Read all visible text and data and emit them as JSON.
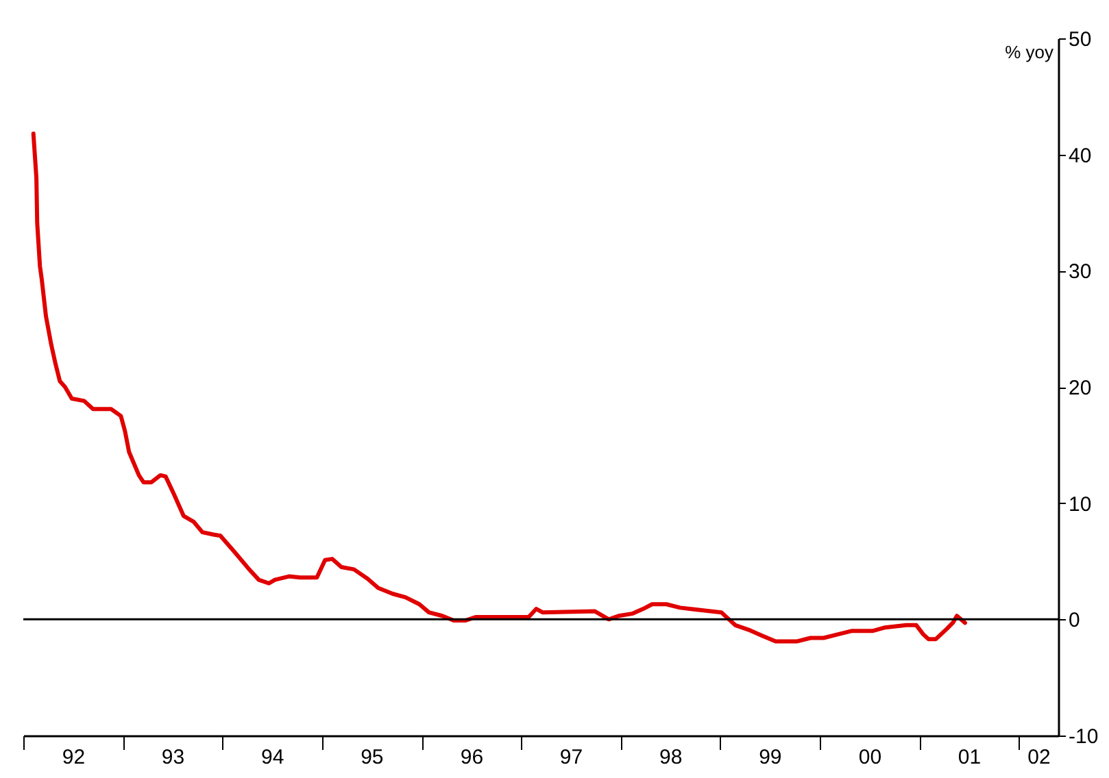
{
  "chart_data": {
    "type": "line",
    "ylabel": "% yoy",
    "x": [
      "1992-02-07",
      "1992-02-18",
      "1992-02-21",
      "1992-03-02",
      "1992-03-09",
      "1992-03-24",
      "1992-04-12",
      "1992-04-28",
      "1992-05-14",
      "1992-06-02",
      "1992-06-27",
      "1992-08-11",
      "1992-09-13",
      "1992-11-18",
      "1992-12-24",
      "1993-01-08",
      "1993-01-23",
      "1993-02-28",
      "1993-03-17",
      "1993-04-15",
      "1993-05-18",
      "1993-06-06",
      "1993-07-08",
      "1993-08-11",
      "1993-09-17",
      "1993-10-19",
      "1993-11-28",
      "1993-12-24",
      "1994-02-14",
      "1994-04-05",
      "1994-05-14",
      "1994-06-20",
      "1994-07-12",
      "1994-09-02",
      "1994-10-12",
      "1994-12-13",
      "1995-01-12",
      "1995-02-07",
      "1995-03-13",
      "1995-04-28",
      "1995-06-17",
      "1995-07-26",
      "1995-09-17",
      "1995-11-03",
      "1995-12-24",
      "1996-01-28",
      "1996-03-17",
      "1996-04-28",
      "1996-06-09",
      "1996-07-19",
      "1996-11-18",
      "1997-01-28",
      "1997-02-25",
      "1997-03-20",
      "1997-09-27",
      "1997-11-18",
      "1997-12-24",
      "1998-02-14",
      "1998-03-24",
      "1998-04-26",
      "1998-06-17",
      "1998-08-07",
      "1998-10-19",
      "1999-01-05",
      "1999-01-28",
      "1999-02-25",
      "1999-04-15",
      "1999-06-02",
      "1999-07-23",
      "1999-10-08",
      "1999-11-28",
      "2000-01-15",
      "2000-03-06",
      "2000-04-26",
      "2000-07-12",
      "2000-08-28",
      "2000-11-14",
      "2000-12-20",
      "2001-01-15",
      "2001-02-03",
      "2001-03-02",
      "2001-04-12",
      "2001-05-03",
      "2001-05-18",
      "2001-06-02",
      "2001-06-17"
    ],
    "series": [
      {
        "color": "#e00000",
        "values": [
          41.8,
          38,
          34.1,
          30.4,
          29.2,
          26.1,
          23.7,
          22,
          20.5,
          20,
          19,
          18.8,
          18.1,
          18.1,
          17.5,
          16.2,
          14.4,
          12.4,
          11.8,
          11.8,
          12.4,
          12.3,
          10.7,
          8.9,
          8.4,
          7.5,
          7.3,
          7.2,
          5.8,
          4.4,
          3.4,
          3.1,
          3.4,
          3.7,
          3.6,
          3.6,
          5.1,
          5.2,
          4.5,
          4.3,
          3.5,
          2.7,
          2.2,
          1.9,
          1.3,
          0.6,
          0.3,
          -0.1,
          -0.1,
          0.2,
          0.2,
          0.2,
          0.9,
          0.6,
          0.7,
          0,
          0.3,
          0.5,
          0.9,
          1.3,
          1.3,
          1.0,
          0.8,
          0.6,
          0.1,
          -0.5,
          -0.9,
          -1.4,
          -1.9,
          -1.9,
          -1.6,
          -1.6,
          -1.3,
          -1.0,
          -1.0,
          -0.7,
          -0.5,
          -0.5,
          -1.3,
          -1.7,
          -1.7,
          -0.8,
          -0.3,
          0.3,
          0,
          -0.3
        ]
      }
    ],
    "xlim": [
      "1992-01-01",
      "2002-05-25"
    ],
    "xticks": [
      {
        "value": "1992",
        "label": null
      },
      {
        "value": "1992-07",
        "label": "92"
      },
      {
        "value": "1993",
        "label": null
      },
      {
        "value": "1993-07",
        "label": "93"
      },
      {
        "value": "1994",
        "label": null
      },
      {
        "value": "1994-07",
        "label": "94"
      },
      {
        "value": "1995",
        "label": null
      },
      {
        "value": "1995-07",
        "label": "95"
      },
      {
        "value": "1996",
        "label": null
      },
      {
        "value": "1996-07",
        "label": "96"
      },
      {
        "value": "1997",
        "label": null
      },
      {
        "value": "1997-07",
        "label": "97"
      },
      {
        "value": "1998",
        "label": null
      },
      {
        "value": "1998-07",
        "label": "98"
      },
      {
        "value": "1999",
        "label": null
      },
      {
        "value": "1999-07",
        "label": "99"
      },
      {
        "value": "2000",
        "label": null
      },
      {
        "value": "2000-07",
        "label": "00"
      },
      {
        "value": "2001",
        "label": null
      },
      {
        "value": "2001-07",
        "label": "01"
      },
      {
        "value": "2002",
        "label": null
      },
      {
        "value": "2002-03-13",
        "label": "02"
      }
    ],
    "ylim": [
      -10,
      50
    ],
    "yticks": [
      -10,
      0,
      10,
      20,
      30,
      40,
      50
    ],
    "ref_lines": [
      {
        "axis": "y",
        "value": 0,
        "color": "#000000"
      }
    ],
    "grid": false,
    "line_style": "solid"
  }
}
